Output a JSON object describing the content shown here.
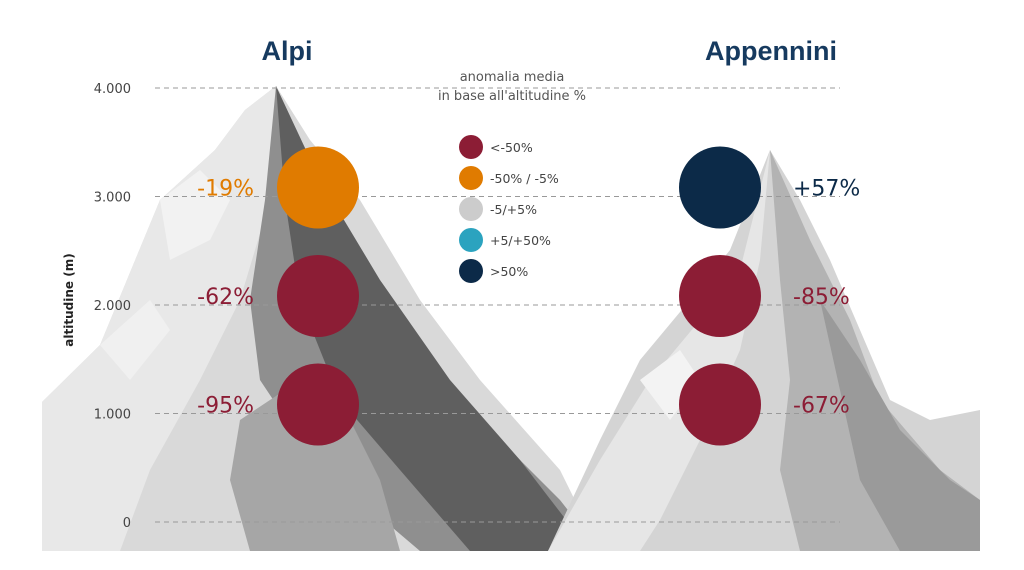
{
  "chart_data": {
    "type": "scatter",
    "title": "",
    "ylabel": "altitudine (m)",
    "ylim": [
      0,
      4000
    ],
    "yticks": [
      0,
      1000,
      2000,
      3000,
      4000
    ],
    "ytick_labels": [
      "0",
      "1.000",
      "2.000",
      "3.000",
      "4.000"
    ],
    "grid": true,
    "legend": {
      "title": [
        "anomalia media",
        "in base all'altitudine %"
      ],
      "position": "top-center",
      "entries": [
        {
          "label": "<-50%",
          "color": "#8c1d35"
        },
        {
          "label": "-50% / -5%",
          "color": "#e07b00"
        },
        {
          "label": "-5/+5%",
          "color": "#cccccc"
        },
        {
          "label": "+5/+50%",
          "color": "#2ba3bf"
        },
        {
          "label": ">50%",
          "color": "#0c2a48"
        }
      ]
    },
    "groups": [
      {
        "name": "Alpi",
        "points": [
          {
            "altitude": 3000,
            "anomaly_label": "-19%",
            "anomaly": -19,
            "color": "#e07b00"
          },
          {
            "altitude": 2000,
            "anomaly_label": "-62%",
            "anomaly": -62,
            "color": "#8c1d35"
          },
          {
            "altitude": 1000,
            "anomaly_label": "-95%",
            "anomaly": -95,
            "color": "#8c1d35"
          }
        ]
      },
      {
        "name": "Appennini",
        "points": [
          {
            "altitude": 3000,
            "anomaly_label": "+57%",
            "anomaly": 57,
            "color": "#0c2a48"
          },
          {
            "altitude": 2000,
            "anomaly_label": "-85%",
            "anomaly": -85,
            "color": "#8c1d35"
          },
          {
            "altitude": 1000,
            "anomaly_label": "-67%",
            "anomaly": -67,
            "color": "#8c1d35"
          }
        ]
      }
    ]
  },
  "colors": {
    "title": "#163a5f",
    "negative_label": "#8c1d35",
    "moderate_label": "#e07b00",
    "positive_label": "#0c2a48",
    "grid": "#999999"
  }
}
